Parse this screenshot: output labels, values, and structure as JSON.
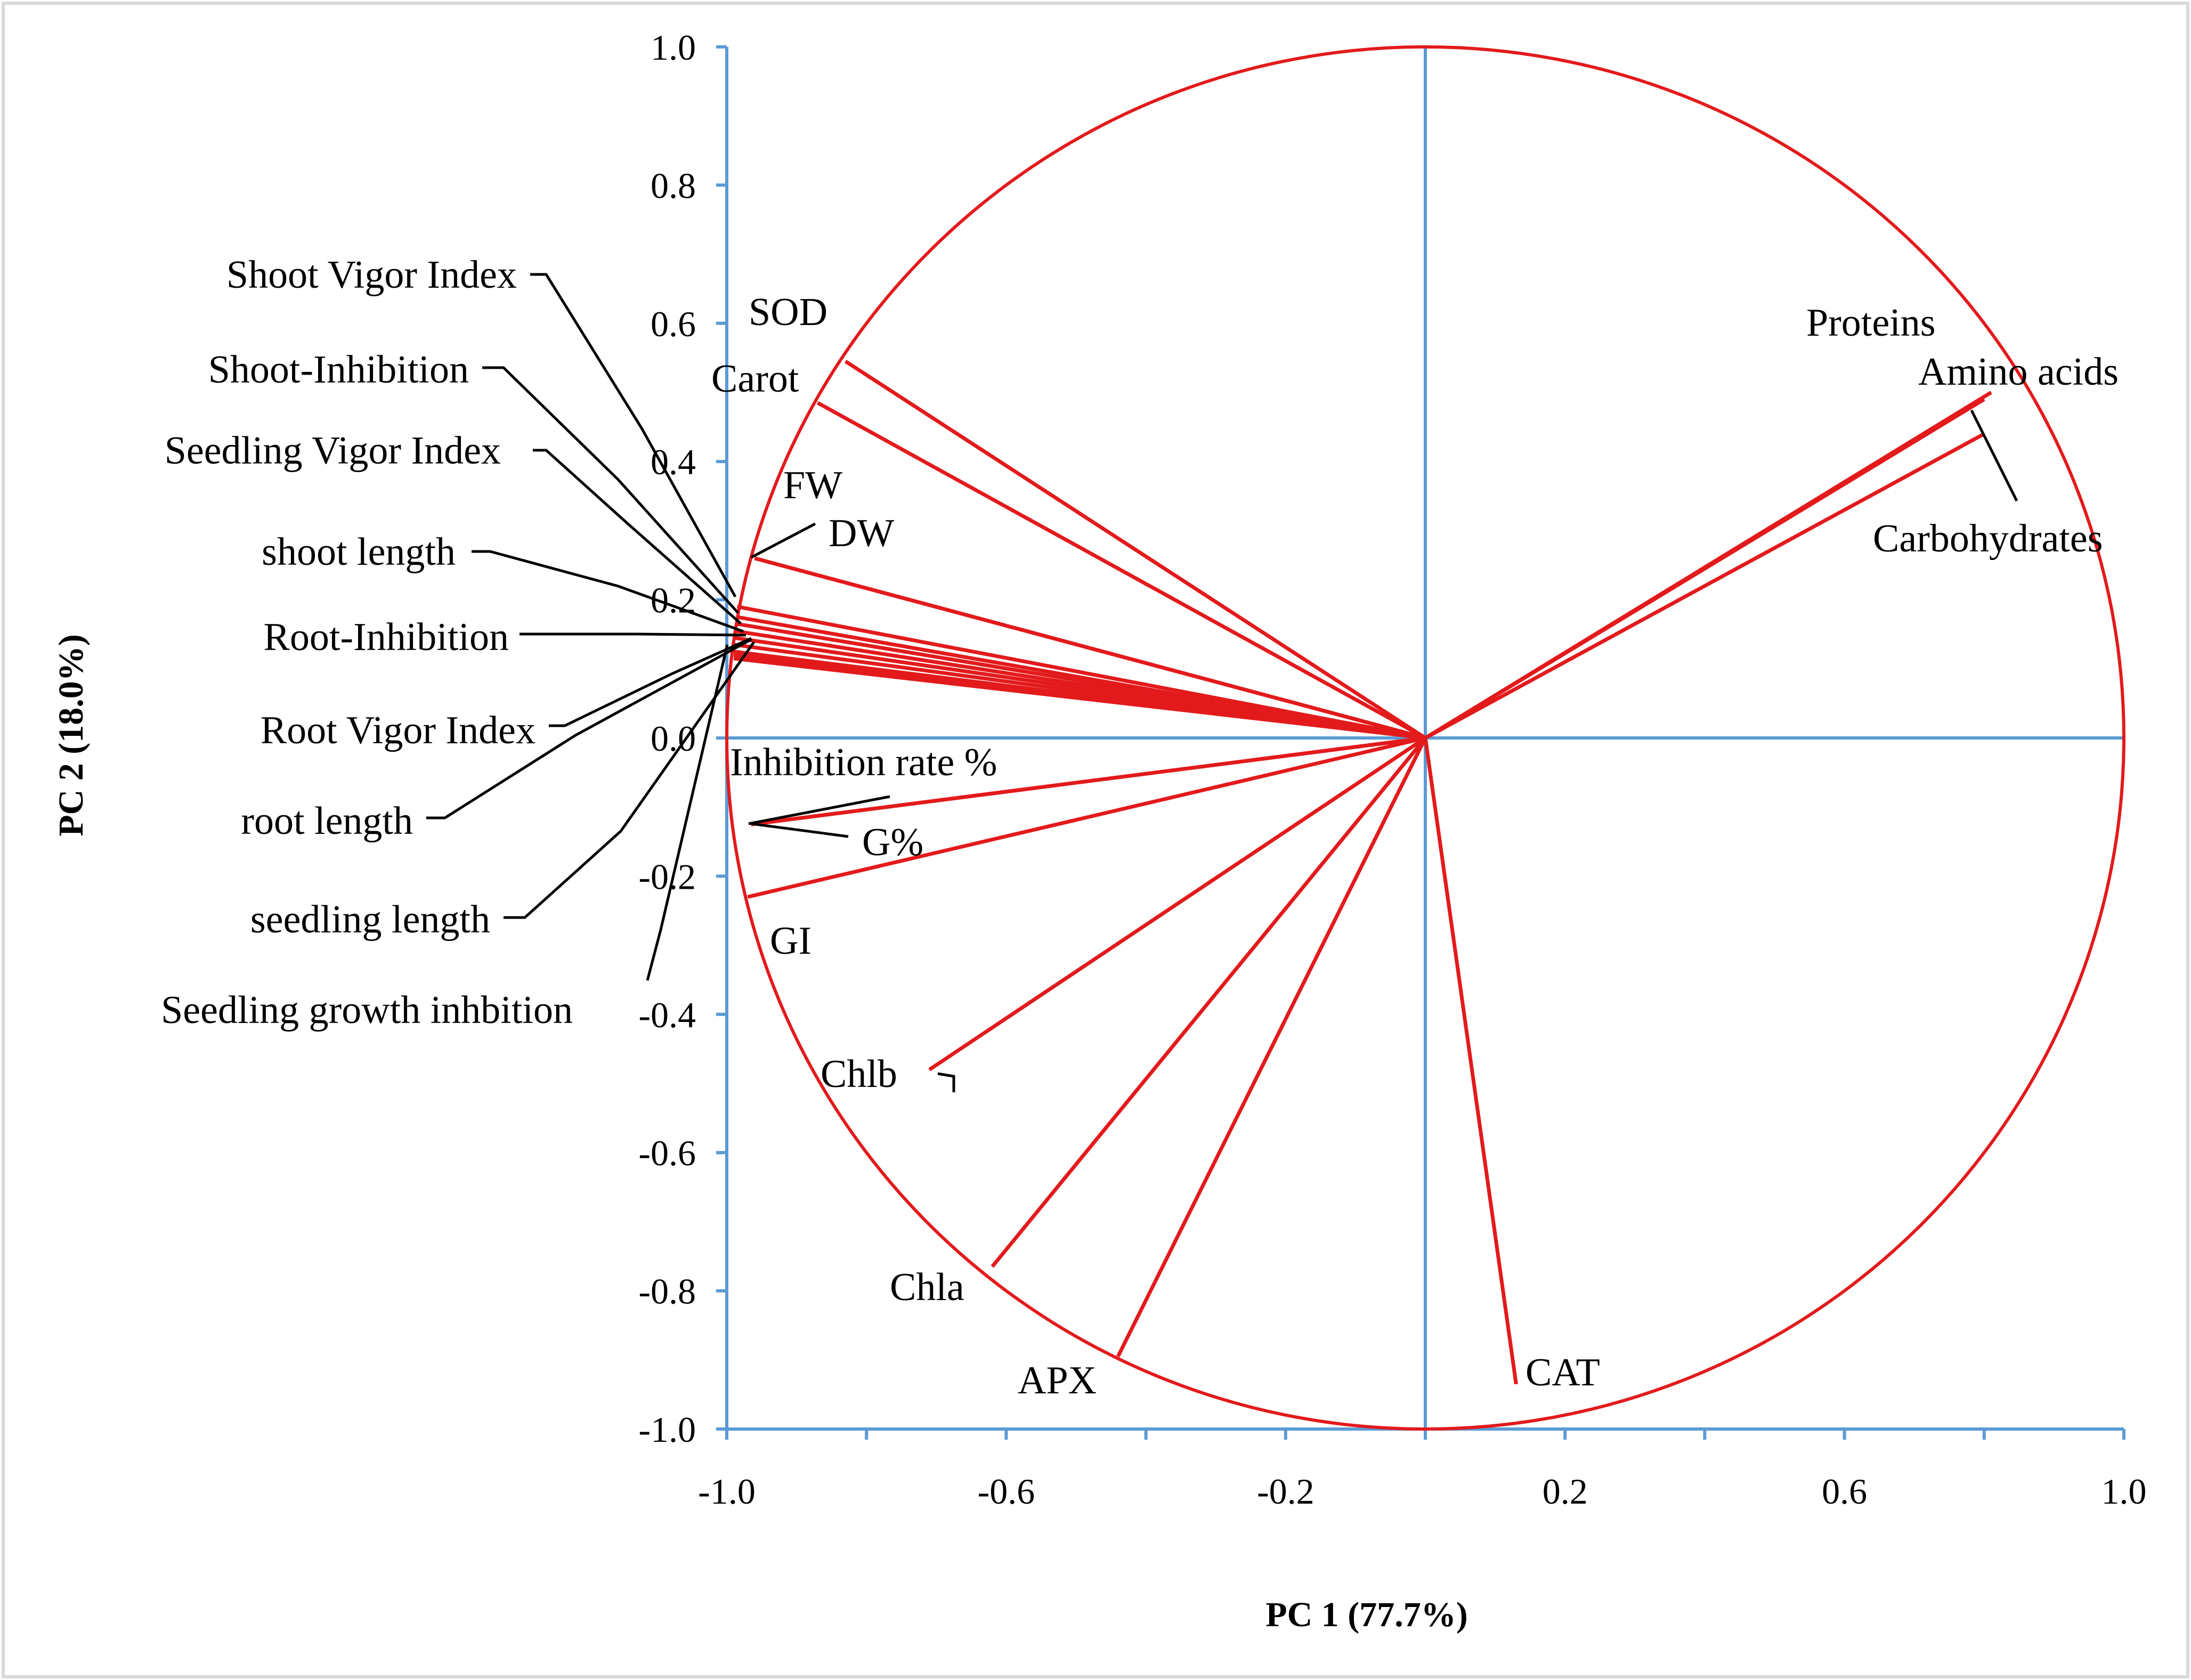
{
  "chart_data": {
    "type": "scatter",
    "subtype": "pca-correlation-circle",
    "title": "",
    "xlabel": "PC 1 (77.7%)",
    "ylabel": "PC 2 (18.0%)",
    "xlim": [
      -1.0,
      1.0
    ],
    "ylim": [
      -1.0,
      1.0
    ],
    "x_tick_labels": [
      {
        "value": -1.0,
        "label": "-1.0"
      },
      {
        "value": -0.6,
        "label": "-0.6"
      },
      {
        "value": -0.2,
        "label": "-0.2"
      },
      {
        "value": 0.2,
        "label": "0.2"
      },
      {
        "value": 0.6,
        "label": "0.6"
      },
      {
        "value": 1.0,
        "label": "1.0"
      }
    ],
    "x_minor_ticks": [
      -0.8,
      -0.4,
      0.0,
      0.4,
      0.8
    ],
    "y_tick_labels": [
      {
        "value": 1.0,
        "label": "1.0"
      },
      {
        "value": 0.8,
        "label": "0.8"
      },
      {
        "value": 0.6,
        "label": "0.6"
      },
      {
        "value": 0.4,
        "label": "0.4"
      },
      {
        "value": 0.2,
        "label": "0.2"
      },
      {
        "value": 0.0,
        "label": "0.0"
      },
      {
        "value": -0.2,
        "label": "-0.2"
      },
      {
        "value": -0.4,
        "label": "-0.4"
      },
      {
        "value": -0.6,
        "label": "-0.6"
      },
      {
        "value": -0.8,
        "label": "-0.8"
      },
      {
        "value": -1.0,
        "label": "-1.0"
      }
    ],
    "correlation_circle": {
      "center": [
        0,
        0
      ],
      "radius": 1.0
    },
    "arrow_origin": [
      0.0,
      0.0
    ],
    "series": [
      {
        "name": "SOD",
        "x": -0.83,
        "y": 0.545
      },
      {
        "name": "Carot",
        "x": -0.87,
        "y": 0.485
      },
      {
        "name": "FW",
        "x": -0.96,
        "y": 0.26
      },
      {
        "name": "DW",
        "x": -0.96,
        "y": 0.26
      },
      {
        "name": "Shoot Vigor Index",
        "x": -0.985,
        "y": 0.19
      },
      {
        "name": "Shoot-Inhibition",
        "x": -0.985,
        "y": 0.175
      },
      {
        "name": "Seedling Vigor Index",
        "x": -0.985,
        "y": 0.165
      },
      {
        "name": "shoot length",
        "x": -0.99,
        "y": 0.155
      },
      {
        "name": "Root-Inhibition",
        "x": -0.99,
        "y": 0.145
      },
      {
        "name": "Root Vigor Index",
        "x": -0.99,
        "y": 0.135
      },
      {
        "name": "root length",
        "x": -0.99,
        "y": 0.125
      },
      {
        "name": "seedling length",
        "x": -0.99,
        "y": 0.12
      },
      {
        "name": "Seedling growth inhbition",
        "x": -0.99,
        "y": 0.115
      },
      {
        "name": "Inhibition rate %",
        "x": -0.965,
        "y": -0.125
      },
      {
        "name": "G%",
        "x": -0.965,
        "y": -0.125
      },
      {
        "name": "GI",
        "x": -0.97,
        "y": -0.23
      },
      {
        "name": "Chlb",
        "x": -0.71,
        "y": -0.48
      },
      {
        "name": "Chla",
        "x": -0.62,
        "y": -0.765
      },
      {
        "name": "APX",
        "x": -0.44,
        "y": -0.895
      },
      {
        "name": "CAT",
        "x": 0.13,
        "y": -0.935
      },
      {
        "name": "Proteins",
        "x": 0.81,
        "y": 0.5
      },
      {
        "name": "Amino acids",
        "x": 0.8,
        "y": 0.49
      },
      {
        "name": "Carbohydrates",
        "x": 0.8,
        "y": 0.44
      }
    ],
    "annotations": [
      {
        "text": "SOD"
      },
      {
        "text": "Carot"
      },
      {
        "text": "FW"
      },
      {
        "text": "DW"
      },
      {
        "text": "Shoot Vigor Index"
      },
      {
        "text": "Shoot-Inhibition"
      },
      {
        "text": "Seedling Vigor Index"
      },
      {
        "text": "shoot length"
      },
      {
        "text": "Root-Inhibition"
      },
      {
        "text": "Root Vigor Index"
      },
      {
        "text": "root length"
      },
      {
        "text": "seedling length"
      },
      {
        "text": "Seedling growth inhbition"
      },
      {
        "text": "Inhibition rate %"
      },
      {
        "text": "G%"
      },
      {
        "text": "GI"
      },
      {
        "text": "Chlb"
      },
      {
        "text": "Chla"
      },
      {
        "text": "APX"
      },
      {
        "text": "CAT"
      },
      {
        "text": "Proteins"
      },
      {
        "text": "Amino acids"
      },
      {
        "text": "Carbohydrates"
      }
    ],
    "grid": false,
    "legend": "none",
    "colors": {
      "vectors": "#e31a1c",
      "circle": "#e31a1c",
      "axes": "#5b9bd5",
      "leaders": "#000000",
      "text": "#000000",
      "frame": "#d9d9d9"
    }
  }
}
